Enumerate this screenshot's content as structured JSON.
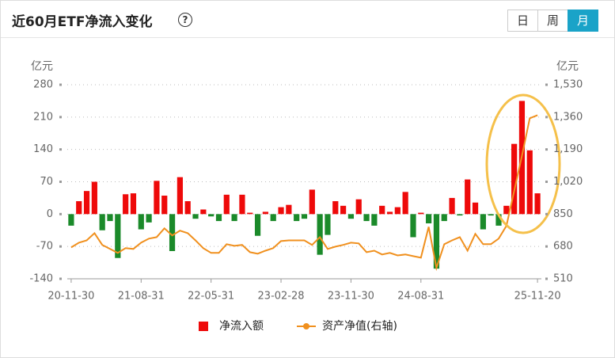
{
  "header": {
    "title": "近60月ETF净流入变化",
    "tabs": [
      "日",
      "周",
      "月"
    ],
    "active_tab": "月"
  },
  "chart_data": {
    "type": "bar",
    "y_unit": "亿元",
    "y2_unit": "亿元",
    "categories": [
      "20-11-30",
      null,
      null,
      null,
      null,
      null,
      null,
      null,
      null,
      "21-08-31",
      null,
      null,
      null,
      null,
      null,
      null,
      null,
      null,
      "22-05-31",
      null,
      null,
      null,
      null,
      null,
      null,
      null,
      null,
      "23-02-28",
      null,
      null,
      null,
      null,
      null,
      null,
      null,
      null,
      "23-11-30",
      null,
      null,
      null,
      null,
      null,
      null,
      null,
      null,
      "24-08-31",
      null,
      null,
      null,
      null,
      null,
      null,
      null,
      null,
      null,
      null,
      null,
      null,
      null,
      null,
      "25-11-20"
    ],
    "series": [
      {
        "name": "净流入额",
        "type": "bar",
        "color": "#ee0a0a",
        "negative_color": "#1b8a2a",
        "values": [
          -25,
          28,
          50,
          70,
          -35,
          -15,
          -95,
          43,
          45,
          -33,
          -18,
          72,
          40,
          -80,
          80,
          28,
          -10,
          10,
          -5,
          -15,
          42,
          -15,
          42,
          3,
          -47,
          5,
          -15,
          15,
          20,
          -15,
          -10,
          53,
          -88,
          -45,
          28,
          18,
          -10,
          32,
          -15,
          -25,
          18,
          5,
          15,
          48,
          -50,
          3,
          -20,
          -118,
          -15,
          35,
          -3,
          75,
          25,
          -33,
          -3,
          -25,
          18,
          152,
          245,
          138,
          45
        ]
      },
      {
        "name": "资产净值(右轴)",
        "type": "line",
        "axis": "y2",
        "color": "#f0901e",
        "values": [
          675,
          700,
          712,
          750,
          688,
          667,
          646,
          671,
          667,
          700,
          721,
          729,
          775,
          738,
          763,
          750,
          712,
          671,
          646,
          646,
          692,
          683,
          688,
          650,
          642,
          658,
          671,
          708,
          712,
          712,
          712,
          688,
          729,
          667,
          679,
          688,
          700,
          696,
          650,
          658,
          638,
          646,
          633,
          638,
          629,
          621,
          783,
          567,
          692,
          712,
          729,
          658,
          746,
          692,
          692,
          721,
          788,
          971,
          1158,
          1354,
          1370
        ]
      }
    ],
    "ylim": [
      -140,
      280
    ],
    "yticks": [
      -140,
      -70,
      0,
      70,
      140,
      210,
      280
    ],
    "y2lim": [
      510,
      1530
    ],
    "y2ticks": [
      510,
      680,
      850,
      {
        "value": 1020,
        "label": "1,020"
      },
      {
        "value": 1190,
        "label": "1,190"
      },
      {
        "value": 1360,
        "label": "1,360"
      },
      {
        "value": 1530,
        "label": "1,530"
      }
    ],
    "grid": true,
    "legend": "bottom"
  }
}
